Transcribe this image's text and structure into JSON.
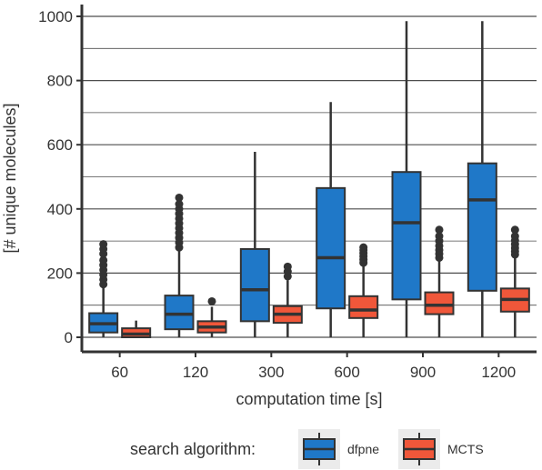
{
  "chart_data": {
    "type": "boxplot",
    "xlabel": "computation time [s]",
    "ylabel": "[# unique molecules]",
    "categories": [
      "60",
      "120",
      "300",
      "600",
      "900",
      "1200"
    ],
    "ylim": [
      -40,
      1000
    ],
    "yticks": [
      0,
      200,
      400,
      600,
      800,
      1000
    ],
    "grid": "horizontal major and minor",
    "legend": {
      "title": "search algorithm:",
      "position": "bottom"
    },
    "series": [
      {
        "name": "dfpne",
        "color": "#1f78c8",
        "boxes": [
          {
            "q1": 15,
            "median": 42,
            "q3": 75,
            "whisker_low": 0,
            "whisker_high": 158,
            "outliers": [
              165,
              180,
              195,
              210,
              225,
              240,
              260,
              275,
              290
            ]
          },
          {
            "q1": 25,
            "median": 72,
            "q3": 130,
            "whisker_low": 0,
            "whisker_high": 275,
            "outliers": [
              280,
              295,
              310,
              325,
              340,
              355,
              370,
              385,
              400,
              415,
              435
            ]
          },
          {
            "q1": 50,
            "median": 148,
            "q3": 275,
            "whisker_low": 0,
            "whisker_high": 578,
            "outliers": []
          },
          {
            "q1": 90,
            "median": 248,
            "q3": 465,
            "whisker_low": 0,
            "whisker_high": 733,
            "outliers": []
          },
          {
            "q1": 118,
            "median": 357,
            "q3": 515,
            "whisker_low": 0,
            "whisker_high": 985,
            "outliers": []
          },
          {
            "q1": 145,
            "median": 428,
            "q3": 542,
            "whisker_low": 0,
            "whisker_high": 985,
            "outliers": []
          }
        ]
      },
      {
        "name": "MCTS",
        "color": "#f0573a",
        "boxes": [
          {
            "q1": 0,
            "median": 10,
            "q3": 28,
            "whisker_low": 0,
            "whisker_high": 52,
            "outliers": []
          },
          {
            "q1": 15,
            "median": 32,
            "q3": 50,
            "whisker_low": 0,
            "whisker_high": 95,
            "outliers": [
              112
            ]
          },
          {
            "q1": 45,
            "median": 72,
            "q3": 97,
            "whisker_low": 0,
            "whisker_high": 178,
            "outliers": [
              190,
              205,
              220
            ]
          },
          {
            "q1": 60,
            "median": 85,
            "q3": 128,
            "whisker_low": 0,
            "whisker_high": 225,
            "outliers": [
              232,
              242,
              252,
              262,
              272,
              280
            ]
          },
          {
            "q1": 72,
            "median": 100,
            "q3": 140,
            "whisker_low": 0,
            "whisker_high": 238,
            "outliers": [
              248,
              260,
              272,
              285,
              300,
              315,
              335
            ]
          },
          {
            "q1": 80,
            "median": 118,
            "q3": 152,
            "whisker_low": 0,
            "whisker_high": 250,
            "outliers": [
              258,
              268,
              278,
              290,
              302,
              315,
              335
            ]
          }
        ]
      }
    ]
  }
}
